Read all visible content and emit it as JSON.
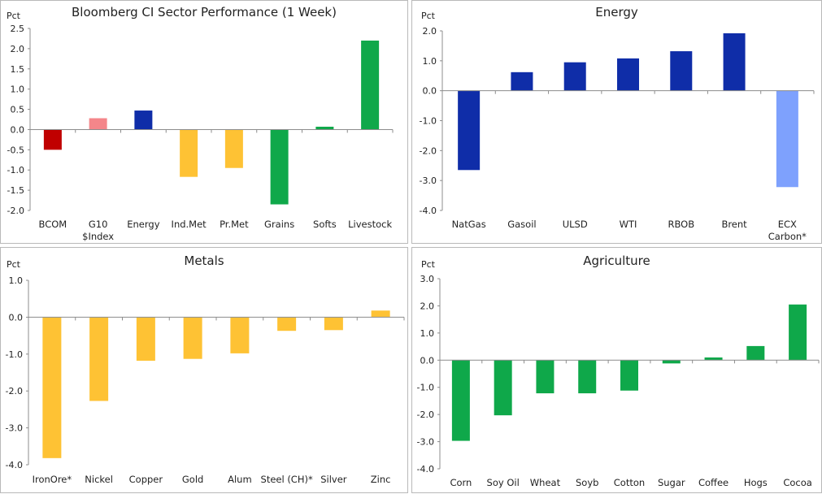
{
  "chart_data": [
    {
      "type": "bar",
      "title": "Bloomberg CI Sector Performance (1 Week)",
      "ylabel": "Pct",
      "ylim": [
        -2.0,
        2.5
      ],
      "yticks": [
        "2.5",
        "2.0",
        "1.5",
        "1.0",
        "0.5",
        "0.0",
        "-0.5",
        "-1.0",
        "-1.5",
        "-2.0"
      ],
      "yticks_values": [
        2.5,
        2.0,
        1.5,
        1.0,
        0.5,
        0.0,
        -0.5,
        -1.0,
        -1.5,
        -2.0
      ],
      "categories": [
        "BCOM",
        "G10 $Index",
        "Energy",
        "Ind.Met",
        "Pr.Met",
        "Grains",
        "Softs",
        "Livestock"
      ],
      "category_lines": [
        [
          "BCOM"
        ],
        [
          "G10",
          "$Index"
        ],
        [
          "Energy"
        ],
        [
          "Ind.Met"
        ],
        [
          "Pr.Met"
        ],
        [
          "Grains"
        ],
        [
          "Softs"
        ],
        [
          "Livestock"
        ]
      ],
      "values": [
        -0.5,
        0.28,
        0.47,
        -1.17,
        -0.95,
        -1.85,
        0.07,
        2.2
      ],
      "colors": [
        "#c00000",
        "#f4868a",
        "#0f2da8",
        "#fec234",
        "#fec234",
        "#0fa84a",
        "#0fa84a",
        "#0fa84a"
      ],
      "grid": false
    },
    {
      "type": "bar",
      "title": "Energy",
      "ylabel": "Pct",
      "ylim": [
        -4.0,
        2.0
      ],
      "yticks": [
        "2.0",
        "1.0",
        "0.0",
        "-1.0",
        "-2.0",
        "-3.0",
        "-4.0"
      ],
      "yticks_values": [
        2.0,
        1.0,
        0.0,
        -1.0,
        -2.0,
        -3.0,
        -4.0
      ],
      "categories": [
        "NatGas",
        "Gasoil",
        "ULSD",
        "WTI",
        "RBOB",
        "Brent",
        "ECX Carbon*"
      ],
      "category_lines": [
        [
          "NatGas"
        ],
        [
          "Gasoil"
        ],
        [
          "ULSD"
        ],
        [
          "WTI"
        ],
        [
          "RBOB"
        ],
        [
          "Brent"
        ],
        [
          "ECX",
          "Carbon*"
        ]
      ],
      "values": [
        -2.65,
        0.62,
        0.95,
        1.08,
        1.32,
        1.92,
        -3.22
      ],
      "colors": [
        "#0f2da8",
        "#0f2da8",
        "#0f2da8",
        "#0f2da8",
        "#0f2da8",
        "#0f2da8",
        "#7ea1fd"
      ],
      "grid": false
    },
    {
      "type": "bar",
      "title": "Metals",
      "ylabel": "Pct",
      "ylim": [
        -4.0,
        1.0
      ],
      "yticks": [
        "1.0",
        "0.0",
        "-1.0",
        "-2.0",
        "-3.0",
        "-4.0"
      ],
      "yticks_values": [
        1.0,
        0.0,
        -1.0,
        -2.0,
        -3.0,
        -4.0
      ],
      "categories": [
        "IronOre*",
        "Nickel",
        "Copper",
        "Gold",
        "Alum",
        "Steel (CH)*",
        "Silver",
        "Zinc"
      ],
      "category_lines": [
        [
          "IronOre*"
        ],
        [
          "Nickel"
        ],
        [
          "Copper"
        ],
        [
          "Gold"
        ],
        [
          "Alum"
        ],
        [
          "Steel (CH)*"
        ],
        [
          "Silver"
        ],
        [
          "Zinc"
        ]
      ],
      "values": [
        -3.82,
        -2.27,
        -1.18,
        -1.13,
        -0.98,
        -0.37,
        -0.35,
        0.18
      ],
      "colors": [
        "#fec234",
        "#fec234",
        "#fec234",
        "#fec234",
        "#fec234",
        "#fec234",
        "#fec234",
        "#fec234"
      ],
      "grid": false
    },
    {
      "type": "bar",
      "title": "Agriculture",
      "ylabel": "Pct",
      "ylim": [
        -4.0,
        3.0
      ],
      "yticks": [
        "3.0",
        "2.0",
        "1.0",
        "0.0",
        "-1.0",
        "-2.0",
        "-3.0",
        "-4.0"
      ],
      "yticks_values": [
        3.0,
        2.0,
        1.0,
        0.0,
        -1.0,
        -2.0,
        -3.0,
        -4.0
      ],
      "categories": [
        "Corn",
        "Soy Oil",
        "Wheat",
        "Soyb",
        "Cotton",
        "Sugar",
        "Coffee",
        "Hogs",
        "Cocoa"
      ],
      "category_lines": [
        [
          "Corn"
        ],
        [
          "Soy Oil"
        ],
        [
          "Wheat"
        ],
        [
          "Soyb"
        ],
        [
          "Cotton"
        ],
        [
          "Sugar"
        ],
        [
          "Coffee"
        ],
        [
          "Hogs"
        ],
        [
          "Cocoa"
        ]
      ],
      "values": [
        -2.97,
        -2.03,
        -1.22,
        -1.22,
        -1.12,
        -0.12,
        0.1,
        0.52,
        2.05
      ],
      "colors": [
        "#0fa84a",
        "#0fa84a",
        "#0fa84a",
        "#0fa84a",
        "#0fa84a",
        "#0fa84a",
        "#0fa84a",
        "#0fa84a",
        "#0fa84a"
      ],
      "grid": false
    }
  ]
}
